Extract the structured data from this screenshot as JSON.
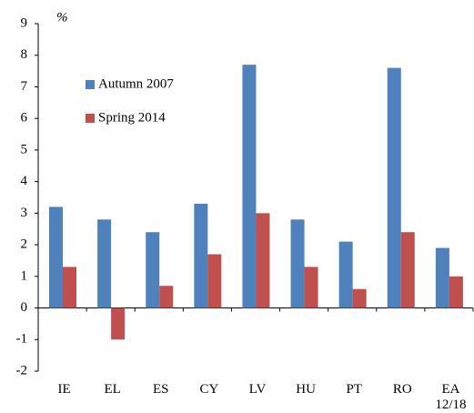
{
  "chart_data": {
    "type": "bar",
    "unit_label": "%",
    "categories": [
      "IE",
      "EL",
      "ES",
      "CY",
      "LV",
      "HU",
      "PT",
      "RO",
      "EA\n12/18"
    ],
    "series": [
      {
        "name": "Autumn 2007",
        "color": "#4f81bd",
        "values": [
          3.2,
          2.8,
          2.4,
          3.3,
          7.7,
          2.8,
          2.1,
          7.6,
          1.9
        ]
      },
      {
        "name": "Spring 2014",
        "color": "#c0504d",
        "values": [
          1.3,
          -1.0,
          0.7,
          1.7,
          3.0,
          1.3,
          0.6,
          2.4,
          1.0
        ]
      }
    ],
    "ylim": [
      -2,
      9
    ],
    "yticks": [
      -2,
      -1,
      0,
      1,
      2,
      3,
      4,
      5,
      6,
      7,
      8,
      9
    ],
    "grid": false,
    "legend": "upper left"
  }
}
